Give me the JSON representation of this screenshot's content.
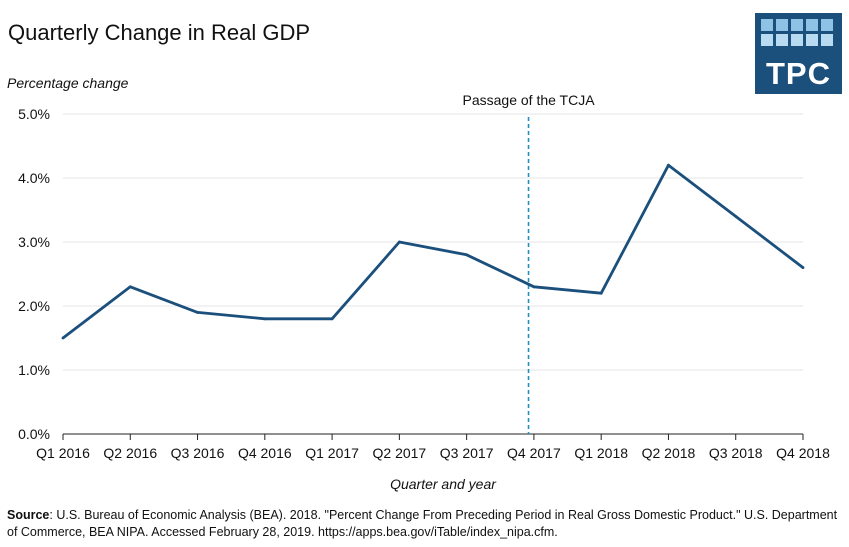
{
  "header": {
    "title": "Quarterly Change in Real GDP",
    "logo_text": "TPC"
  },
  "chart_data": {
    "type": "line",
    "ylabel": "Percentage change",
    "xlabel": "Quarter and year",
    "categories": [
      "Q1 2016",
      "Q2 2016",
      "Q3 2016",
      "Q4 2016",
      "Q1 2017",
      "Q2 2017",
      "Q3 2017",
      "Q4 2017",
      "Q1 2018",
      "Q2 2018",
      "Q3 2018",
      "Q4 2018"
    ],
    "series": [
      {
        "values": [
          1.5,
          2.3,
          1.9,
          1.8,
          1.8,
          3.0,
          2.8,
          2.3,
          2.2,
          4.2,
          3.4,
          2.6
        ]
      }
    ],
    "ylim": [
      0,
      5
    ],
    "yticks": [
      "0.0%",
      "1.0%",
      "2.0%",
      "3.0%",
      "4.0%",
      "5.0%"
    ],
    "grid": true,
    "annotation": {
      "label": "Passage of the TCJA",
      "x_position_between": [
        "Q3 2017",
        "Q4 2017"
      ],
      "x_fraction": 0.92
    },
    "colors": {
      "line": "#1b4f7c",
      "annotation": "#1f8fc4",
      "grid": "#e6e6e6"
    }
  },
  "footer": {
    "source_label": "Source",
    "source_text": ": U.S. Bureau of Economic Analysis (BEA). 2018. \"Percent Change From Preceding Period in Real Gross Domestic Product.\" U.S. Department of Commerce, BEA NIPA. Accessed February 28, 2019. https://apps.bea.gov/iTable/index_nipa.cfm."
  }
}
